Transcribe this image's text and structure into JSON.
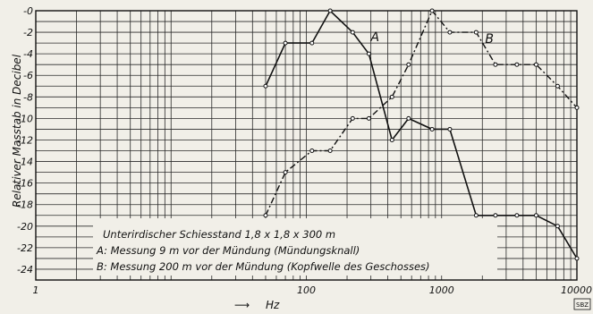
{
  "chart_data": {
    "type": "line",
    "x_scale": "log",
    "xlim": [
      1,
      10000
    ],
    "ylim": [
      -25,
      0
    ],
    "grid": true,
    "xlabel": "Hz",
    "xlabel_arrow": "⟶",
    "ylabel": "Relativer Masstab in Decibel",
    "x_tick_labels": [
      {
        "value": 1,
        "label": "1"
      },
      {
        "value": 100,
        "label": "100"
      },
      {
        "value": 1000,
        "label": "1000"
      },
      {
        "value": 10000,
        "label": "10000"
      }
    ],
    "y_tick_labels": [
      {
        "value": 0,
        "label": "-0"
      },
      {
        "value": -2,
        "label": "-2"
      },
      {
        "value": -4,
        "label": "-4"
      },
      {
        "value": -6,
        "label": "-6"
      },
      {
        "value": -8,
        "label": "-8"
      },
      {
        "value": -10,
        "label": "-10"
      },
      {
        "value": -12,
        "label": "-12"
      },
      {
        "value": -14,
        "label": "-14"
      },
      {
        "value": -16,
        "label": "-16"
      },
      {
        "value": -18,
        "label": "-18"
      },
      {
        "value": -20,
        "label": "-20"
      },
      {
        "value": -22,
        "label": "-22"
      },
      {
        "value": -24,
        "label": "-24"
      }
    ],
    "series": [
      {
        "name": "A",
        "style": "solid",
        "x": [
          50,
          70,
          110,
          150,
          220,
          290,
          430,
          570,
          850,
          1150,
          1800,
          2500,
          3600,
          5000,
          7200,
          10000
        ],
        "y": [
          -7,
          -3,
          -3,
          0,
          -2,
          -4,
          -12,
          -10,
          -11,
          -11,
          -19,
          -19,
          -19,
          -19,
          -20,
          -23
        ]
      },
      {
        "name": "B",
        "style": "dash-dot",
        "x": [
          50,
          70,
          110,
          150,
          220,
          290,
          430,
          570,
          850,
          1150,
          1800,
          2500,
          3600,
          5000,
          7200,
          10000
        ],
        "y": [
          -19,
          -15,
          -13,
          -13,
          -10,
          -10,
          -8,
          -5,
          0,
          -2,
          -2,
          -5,
          -5,
          -5,
          -7,
          -9
        ]
      }
    ],
    "annotations": {
      "title": "Unterirdischer Schiesstand  1,8 x 1,8 x 300 m",
      "note_a": "A: Messung  9 m  vor der Mündung  (Mündungsknall)",
      "note_b": "B: Messung  200 m  vor der Mündung  (Kopfwelle des Geschosses)"
    }
  },
  "badge": "SBZ",
  "colors": {
    "background": "#f1efe8",
    "ink": "#111111"
  }
}
